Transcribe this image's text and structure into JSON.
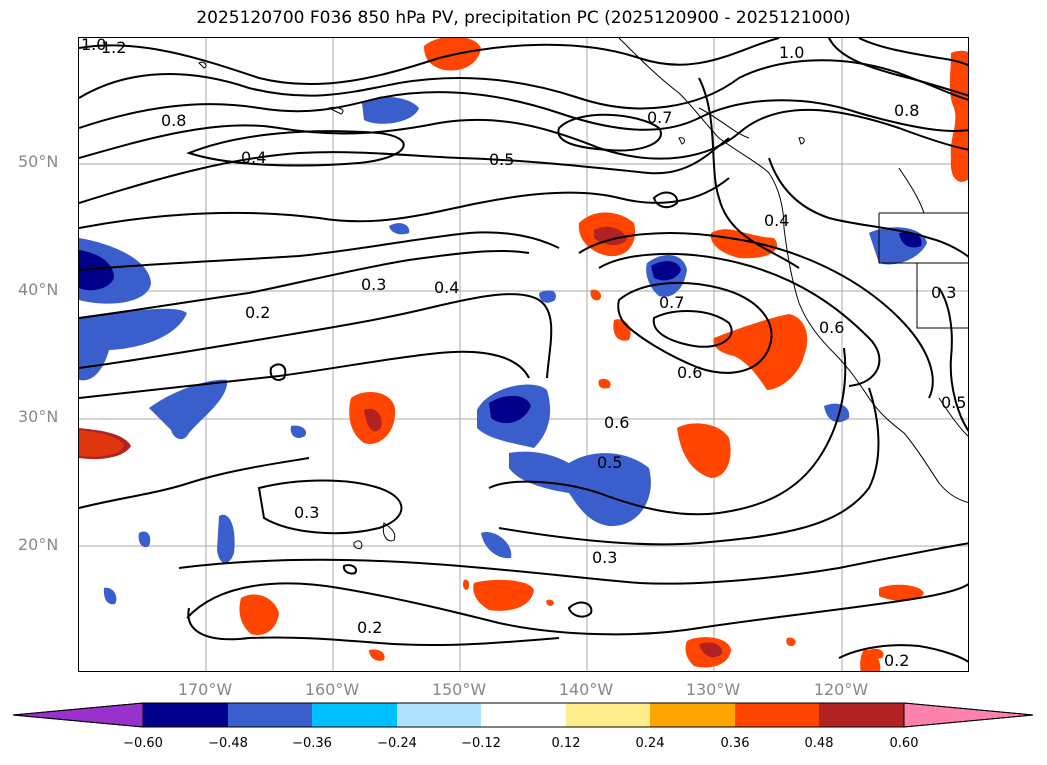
{
  "title": "2025120700 F036 850 hPa PV, precipitation PC (2025120900 - 2025121000)",
  "lat_labels": [
    "50°N",
    "40°N",
    "30°N",
    "20°N"
  ],
  "lon_labels": [
    "170°W",
    "160°W",
    "150°W",
    "140°W",
    "130°W",
    "120°W"
  ],
  "colorbar": {
    "ticks": [
      "−0.60",
      "−0.48",
      "−0.36",
      "−0.24",
      "−0.12",
      "0.12",
      "0.24",
      "0.36",
      "0.48",
      "0.60"
    ],
    "colors": [
      "#9932cc",
      "#00008b",
      "#3a5fcd",
      "#00bfff",
      "#b0e2ff",
      "#ffffff",
      "#ffec8b",
      "#ffa500",
      "#ff4500",
      "#b22222",
      "#ff82ab"
    ]
  },
  "contour_labels": [
    "1.0",
    "1.2",
    "0.8",
    "0.4",
    "0.5",
    "0.7",
    "1.0",
    "0.8",
    "0.4",
    "0.3",
    "0.2",
    "0.3",
    "0.4",
    "0.7",
    "0.6",
    "0.6",
    "0.5",
    "0.3",
    "0.3",
    "0.2",
    "0.2",
    "0.6",
    "0.5"
  ]
}
